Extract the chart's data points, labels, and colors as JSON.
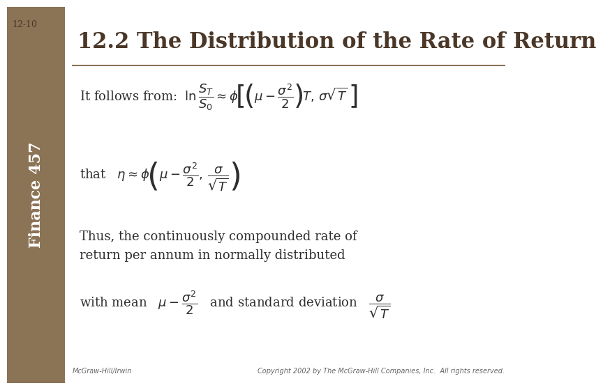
{
  "slide_number": "12-10",
  "sidebar_text": "Finance 457",
  "title": "12.2 The Distribution of the Rate of Return",
  "title_color": "#4a3728",
  "title_fontsize": 22,
  "bg_color": "#ffffff",
  "sidebar_bg": "#8b7355",
  "sidebar_text_color": "#ffffff",
  "divider_color": "#8b7355",
  "text_color": "#2e2e2e",
  "text_body_line1": "Thus, the continuously compounded rate of",
  "text_body_line2": "return per annum in normally distributed",
  "footer_left": "McGraw-Hill/Irwin",
  "footer_right": "Copyright 2002 by The McGraw-Hill Companies, Inc.  All rights reserved.",
  "footer_color": "#666666",
  "footer_fontsize": 7
}
